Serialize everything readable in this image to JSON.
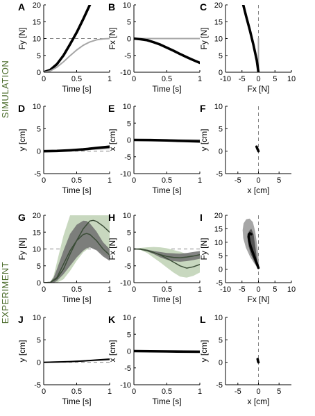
{
  "sections": [
    {
      "label": "SIMULATION",
      "rows": [
        0,
        1
      ]
    },
    {
      "label": "EXPERIMENT",
      "rows": [
        2,
        3
      ]
    }
  ],
  "colors": {
    "black": "#000000",
    "gray_line": "#a6a6a6",
    "dashed": "#808080",
    "green_band": "#c8d8bf",
    "dark_band": "#6e6e6e",
    "dark_green_line": "#3b4d37",
    "section_label": "#4a6b2a"
  },
  "chart_data": [
    {
      "panel": "A",
      "type": "line",
      "xlabel": "Time [s]",
      "ylabel": "Fy [N]",
      "xlim": [
        0,
        1
      ],
      "ylim": [
        0,
        20
      ],
      "xticks": [
        0,
        0.5,
        1
      ],
      "yticks": [
        0,
        5,
        10,
        15,
        20
      ],
      "xtick_labels": [
        "0",
        "0.5",
        "1"
      ],
      "ytick_labels": [
        "0",
        "5",
        "10",
        "15",
        "20"
      ],
      "ref_lines": [
        {
          "orientation": "h",
          "value": 10
        }
      ],
      "series": [
        {
          "style": "thick-black",
          "x": [
            0,
            0.1,
            0.2,
            0.3,
            0.4,
            0.5,
            0.6,
            0.7
          ],
          "y": [
            0,
            0.7,
            2.4,
            5.0,
            8.3,
            11.8,
            15.8,
            20.0
          ]
        },
        {
          "style": "gray",
          "x": [
            0,
            0.1,
            0.2,
            0.3,
            0.4,
            0.5,
            0.6,
            0.7,
            0.8,
            0.9,
            1.0
          ],
          "y": [
            0,
            0.4,
            1.5,
            3.1,
            4.9,
            6.6,
            8.0,
            9.0,
            9.6,
            9.9,
            10.0
          ]
        }
      ]
    },
    {
      "panel": "B",
      "type": "line",
      "xlabel": "Time [s]",
      "ylabel": "Fx [N]",
      "xlim": [
        0,
        1
      ],
      "ylim": [
        -10,
        10
      ],
      "xticks": [
        0,
        0.5,
        1
      ],
      "yticks": [
        -10,
        -5,
        0,
        5,
        10
      ],
      "xtick_labels": [
        "0",
        "0.5",
        "1"
      ],
      "ytick_labels": [
        "-10",
        "-5",
        "0",
        "5",
        "10"
      ],
      "ref_lines": [
        {
          "orientation": "h",
          "value": 0
        }
      ],
      "series": [
        {
          "style": "gray",
          "x": [
            0,
            0.25,
            0.5,
            0.75,
            1.0
          ],
          "y": [
            0,
            0,
            0,
            0,
            0
          ]
        },
        {
          "style": "thick-black",
          "x": [
            0,
            0.1,
            0.2,
            0.3,
            0.4,
            0.5,
            0.6,
            0.7,
            0.8,
            0.9,
            1.0
          ],
          "y": [
            0,
            -0.2,
            -0.5,
            -1.1,
            -1.8,
            -2.7,
            -3.6,
            -4.6,
            -5.5,
            -6.4,
            -7.2
          ]
        }
      ]
    },
    {
      "panel": "C",
      "type": "line",
      "xlabel": "Fx [N]",
      "ylabel": "Fy [N]",
      "xlim": [
        -10,
        10
      ],
      "ylim": [
        0,
        20
      ],
      "xticks": [
        -10,
        -5,
        0,
        5,
        10
      ],
      "yticks": [
        0,
        5,
        10,
        15,
        20
      ],
      "xtick_labels": [
        "-10",
        "-5",
        "0",
        "5",
        "10"
      ],
      "ytick_labels": [
        "0",
        "5",
        "10",
        "15",
        "20"
      ],
      "ref_lines": [
        {
          "orientation": "v",
          "value": 0
        }
      ],
      "series": [
        {
          "style": "gray",
          "x": [
            0,
            0,
            0
          ],
          "y": [
            0,
            5,
            10
          ]
        },
        {
          "style": "thick-black",
          "x": [
            0,
            -0.5,
            -1.5,
            -2.6,
            -3.7,
            -4.6
          ],
          "y": [
            0,
            3.5,
            8.0,
            12.5,
            16.5,
            20.0
          ]
        }
      ]
    },
    {
      "panel": "D",
      "type": "line",
      "xlabel": "Time [s]",
      "ylabel": "y [cm]",
      "xlim": [
        0,
        1
      ],
      "ylim": [
        -5,
        10
      ],
      "xticks": [
        0,
        0.5,
        1
      ],
      "yticks": [
        -5,
        0,
        5,
        10
      ],
      "xtick_labels": [
        "0",
        "0.5",
        "1"
      ],
      "ytick_labels": [
        "-5",
        "0",
        "5",
        "10"
      ],
      "ref_lines": [
        {
          "orientation": "h",
          "value": 0
        }
      ],
      "series": [
        {
          "style": "gray",
          "x": [
            0,
            0.5,
            1.0
          ],
          "y": [
            0,
            0.3,
            0.6
          ]
        },
        {
          "style": "thick-black",
          "x": [
            0,
            0.2,
            0.4,
            0.6,
            0.8,
            1.0
          ],
          "y": [
            0,
            0.05,
            0.2,
            0.4,
            0.7,
            1.0
          ]
        }
      ]
    },
    {
      "panel": "E",
      "type": "line",
      "xlabel": "Time [s]",
      "ylabel": "x [cm]",
      "xlim": [
        0,
        1
      ],
      "ylim": [
        -10,
        10
      ],
      "xticks": [
        0,
        0.5,
        1
      ],
      "yticks": [
        -10,
        -5,
        0,
        5,
        10
      ],
      "xtick_labels": [
        "0",
        "0.5",
        "1"
      ],
      "ytick_labels": [
        "-10",
        "-5",
        "0",
        "5",
        "10"
      ],
      "ref_lines": [
        {
          "orientation": "h",
          "value": 0
        }
      ],
      "series": [
        {
          "style": "gray",
          "x": [
            0,
            1.0
          ],
          "y": [
            0,
            0
          ]
        },
        {
          "style": "thick-black",
          "x": [
            0,
            0.25,
            0.5,
            0.75,
            1.0
          ],
          "y": [
            0,
            -0.05,
            -0.15,
            -0.3,
            -0.45
          ]
        }
      ]
    },
    {
      "panel": "F",
      "type": "line",
      "xlabel": "x [cm]",
      "ylabel": "y [cm]",
      "xlim": [
        -8,
        8
      ],
      "ylim": [
        -5,
        10
      ],
      "xticks": [
        -5,
        0,
        5
      ],
      "yticks": [
        -5,
        0,
        5,
        10
      ],
      "xtick_labels": [
        "-5",
        "0",
        "5"
      ],
      "ytick_labels": [
        "-5",
        "0",
        "5",
        "10"
      ],
      "ref_lines": [
        {
          "orientation": "v",
          "value": 0
        }
      ],
      "series": [
        {
          "style": "thick-black",
          "x": [
            0,
            -0.1,
            -0.25,
            -0.35,
            -0.45
          ],
          "y": [
            0,
            0.25,
            0.5,
            0.75,
            1.0
          ]
        }
      ]
    },
    {
      "panel": "G",
      "type": "area",
      "xlabel": "Time [s]",
      "ylabel": "Fy [N]",
      "xlim": [
        0,
        1
      ],
      "ylim": [
        0,
        20
      ],
      "xticks": [
        0,
        0.5,
        1
      ],
      "yticks": [
        0,
        5,
        10,
        15,
        20
      ],
      "xtick_labels": [
        "0",
        "0.5",
        "1"
      ],
      "ytick_labels": [
        "0",
        "5",
        "10",
        "15",
        "20"
      ],
      "ref_lines": [
        {
          "orientation": "h",
          "value": 10
        }
      ],
      "bands": [
        {
          "style": "green",
          "x": [
            0,
            0.1,
            0.15,
            0.2,
            0.3,
            0.4,
            0.5,
            0.6,
            0.7,
            0.8,
            0.9,
            1.0
          ],
          "upper": [
            0,
            0.2,
            2,
            6,
            14,
            20,
            20,
            20,
            20,
            20,
            20,
            20
          ],
          "lower": [
            0,
            0,
            0,
            0,
            1.0,
            3.5,
            6.5,
            9.0,
            10.5,
            10.0,
            8.5,
            7.5
          ]
        },
        {
          "style": "dark",
          "x": [
            0,
            0.1,
            0.15,
            0.2,
            0.3,
            0.4,
            0.5,
            0.6,
            0.65,
            0.7,
            0.8,
            0.9,
            1.0
          ],
          "upper": [
            0,
            0.2,
            1.5,
            4.0,
            9.5,
            14.5,
            17.2,
            18.4,
            18.3,
            17.6,
            15.2,
            12.0,
            10.0
          ],
          "lower": [
            0,
            0,
            0,
            0.5,
            2.5,
            5.0,
            7.5,
            9.5,
            10.2,
            10.5,
            9.6,
            7.8,
            6.5
          ]
        }
      ],
      "series": [
        {
          "style": "dark-green",
          "x": [
            0,
            0.1,
            0.2,
            0.3,
            0.4,
            0.5,
            0.6,
            0.7,
            0.75,
            0.8,
            0.9,
            1.0
          ],
          "y": [
            0,
            0.1,
            1.2,
            4.0,
            8.5,
            12.5,
            16.0,
            18.3,
            18.5,
            18.2,
            16.8,
            15.0
          ]
        },
        {
          "style": "dark-green",
          "x": [
            0,
            0.1,
            0.2,
            0.3,
            0.4,
            0.5,
            0.6,
            0.65,
            0.7,
            0.8,
            0.9,
            1.0
          ],
          "y": [
            0,
            0.1,
            1.5,
            5.5,
            9.5,
            12.5,
            14.3,
            14.6,
            14.3,
            12.5,
            10.0,
            8.2
          ]
        }
      ]
    },
    {
      "panel": "H",
      "type": "area",
      "xlabel": "Time [s]",
      "ylabel": "Fx [N]",
      "xlim": [
        0,
        1
      ],
      "ylim": [
        -10,
        10
      ],
      "xticks": [
        0,
        0.5,
        1
      ],
      "yticks": [
        -10,
        -5,
        0,
        5,
        10
      ],
      "xtick_labels": [
        "0",
        "0.5",
        "1"
      ],
      "ytick_labels": [
        "-10",
        "-5",
        "0",
        "5",
        "10"
      ],
      "ref_lines": [
        {
          "orientation": "h",
          "value": 0
        }
      ],
      "bands": [
        {
          "style": "green",
          "x": [
            0,
            0.1,
            0.2,
            0.3,
            0.4,
            0.5,
            0.6,
            0.7,
            0.8,
            0.9,
            1.0
          ],
          "upper": [
            0,
            0.3,
            0.5,
            0.6,
            0.5,
            0.2,
            -0.3,
            -0.8,
            -1.5,
            -1.8,
            -2.0
          ],
          "lower": [
            0,
            -0.3,
            -1.2,
            -2.6,
            -4.0,
            -5.5,
            -7.0,
            -8.2,
            -8.5,
            -8.0,
            -7.0
          ]
        },
        {
          "style": "dark",
          "x": [
            0,
            0.1,
            0.2,
            0.3,
            0.4,
            0.5,
            0.6,
            0.7,
            0.8,
            0.9,
            1.0
          ],
          "upper": [
            0,
            0,
            -0.2,
            -0.6,
            -0.9,
            -1.2,
            -1.3,
            -1.4,
            -1.2,
            -0.9,
            -0.6
          ],
          "lower": [
            0,
            -0.2,
            -0.7,
            -1.5,
            -2.5,
            -3.2,
            -3.6,
            -3.8,
            -3.6,
            -3.3,
            -2.9
          ]
        }
      ],
      "series": [
        {
          "style": "dark-green",
          "x": [
            0,
            0.1,
            0.2,
            0.3,
            0.4,
            0.5,
            0.6,
            0.7,
            0.8,
            0.9,
            1.0
          ],
          "y": [
            0,
            0,
            -0.4,
            -1.0,
            -1.8,
            -2.8,
            -3.9,
            -5.0,
            -5.7,
            -5.3,
            -4.6
          ]
        },
        {
          "style": "dark-green",
          "x": [
            0,
            0.1,
            0.2,
            0.3,
            0.4,
            0.5,
            0.6,
            0.7,
            0.8,
            0.9,
            1.0
          ],
          "y": [
            0,
            -0.1,
            -0.5,
            -1.1,
            -1.7,
            -2.2,
            -2.5,
            -2.6,
            -2.4,
            -2.1,
            -1.7
          ]
        }
      ]
    },
    {
      "panel": "I",
      "type": "area",
      "xlabel": "Fx [N]",
      "ylabel": "Fy [N]",
      "xlim": [
        -10,
        10
      ],
      "ylim": [
        -5,
        20
      ],
      "xticks": [
        -10,
        -5,
        0,
        5,
        10
      ],
      "yticks": [
        -5,
        0,
        5,
        10,
        15,
        20
      ],
      "xtick_labels": [
        "-10",
        "-5",
        "0",
        "5",
        "10"
      ],
      "ytick_labels": [
        "-5",
        "0",
        "5",
        "10",
        "15",
        "20"
      ],
      "ref_lines": [
        {
          "orientation": "v",
          "value": 0
        }
      ],
      "blobs": [
        {
          "style": "gray-blob",
          "x": [
            -0.3,
            -1.2,
            -2.5,
            -3.8,
            -4.6,
            -4.8,
            -4.5,
            -3.7,
            -2.7,
            -1.7,
            -1.0,
            -0.4,
            0.0,
            0.2
          ],
          "y": [
            0.5,
            2.0,
            4.5,
            8.0,
            11.5,
            14.5,
            17.0,
            18.5,
            18.8,
            17.5,
            14.0,
            9.0,
            4.5,
            1.5
          ]
        },
        {
          "style": "dark-blob",
          "x": [
            -0.5,
            -1.3,
            -2.3,
            -3.0,
            -3.2,
            -2.9,
            -2.2,
            -1.5,
            -0.9,
            -0.4
          ],
          "y": [
            1.0,
            3.0,
            5.5,
            8.5,
            11.5,
            14.0,
            15.0,
            13.0,
            8.0,
            3.0
          ]
        }
      ],
      "series": [
        {
          "style": "thick-black",
          "x": [
            0,
            -0.6,
            -1.2,
            -1.8,
            -2.4,
            -2.8,
            -3.0,
            -2.9,
            -2.6,
            -2.2
          ],
          "y": [
            0.5,
            2.5,
            4.5,
            6.5,
            8.5,
            10.5,
            12.0,
            13.0,
            13.3,
            13.0
          ]
        }
      ]
    },
    {
      "panel": "J",
      "type": "line",
      "xlabel": "Time [s]",
      "ylabel": "y [cm]",
      "xlim": [
        0,
        1
      ],
      "ylim": [
        -5,
        10
      ],
      "xticks": [
        0,
        0.5,
        1
      ],
      "yticks": [
        -5,
        0,
        5,
        10
      ],
      "xtick_labels": [
        "0",
        "0.5",
        "1"
      ],
      "ytick_labels": [
        "-5",
        "0",
        "5",
        "10"
      ],
      "ref_lines": [
        {
          "orientation": "h",
          "value": 0
        }
      ],
      "series": [
        {
          "style": "gray",
          "x": [
            0,
            1.0
          ],
          "y": [
            0,
            0.5
          ]
        },
        {
          "style": "black",
          "x": [
            0,
            0.2,
            0.4,
            0.6,
            0.8,
            1.0
          ],
          "y": [
            0,
            0.05,
            0.15,
            0.3,
            0.5,
            0.7
          ]
        }
      ]
    },
    {
      "panel": "K",
      "type": "line",
      "xlabel": "Time [s]",
      "ylabel": "x [cm]",
      "xlim": [
        0,
        1
      ],
      "ylim": [
        -10,
        10
      ],
      "xticks": [
        0,
        0.5,
        1
      ],
      "yticks": [
        -10,
        -5,
        0,
        5,
        10
      ],
      "xtick_labels": [
        "0",
        "0.5",
        "1"
      ],
      "ytick_labels": [
        "-10",
        "-5",
        "0",
        "5",
        "10"
      ],
      "ref_lines": [
        {
          "orientation": "h",
          "value": 0
        }
      ],
      "series": [
        {
          "style": "gray",
          "x": [
            0,
            1.0
          ],
          "y": [
            0,
            0
          ]
        },
        {
          "style": "thick-black",
          "x": [
            0,
            0.5,
            1.0
          ],
          "y": [
            0,
            -0.1,
            -0.2
          ]
        }
      ]
    },
    {
      "panel": "L",
      "type": "line",
      "xlabel": "x [cm]",
      "ylabel": "y [cm]",
      "xlim": [
        -8,
        8
      ],
      "ylim": [
        -5,
        10
      ],
      "xticks": [
        -5,
        0,
        5
      ],
      "yticks": [
        -5,
        0,
        5,
        10
      ],
      "xtick_labels": [
        "-5",
        "0",
        "5"
      ],
      "ytick_labels": [
        "-5",
        "0",
        "5",
        "10"
      ],
      "ref_lines": [
        {
          "orientation": "v",
          "value": 0
        }
      ],
      "series": [
        {
          "style": "thick-black",
          "x": [
            0,
            -0.1,
            -0.15,
            -0.2
          ],
          "y": [
            0,
            0.25,
            0.5,
            0.7
          ]
        }
      ]
    }
  ]
}
